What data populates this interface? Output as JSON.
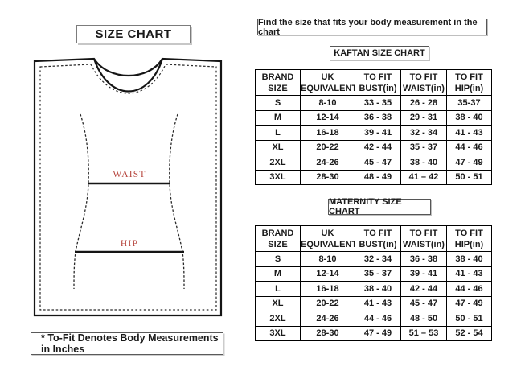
{
  "left_panel": {
    "title": "SIZE CHART",
    "diagram": {
      "waist_label": "WAIST",
      "hip_label": "HIP",
      "label_color": "#b5423a",
      "line_color": "#151515"
    },
    "note": "* To-Fit Denotes Body Measurements in Inches"
  },
  "right_panel": {
    "instruction": "Find the size that fits your body measurement in the chart",
    "tables": [
      {
        "title": "KAFTAN SIZE CHART",
        "headers": [
          "BRAND\nSIZE",
          "UK\nEQUIVALENT",
          "TO FIT\nBUST(in)",
          "TO FIT\nWAIST(in)",
          "TO FIT\nHIP(in)"
        ],
        "rows": [
          [
            "S",
            "8-10",
            "33 - 35",
            "26 - 28",
            "35-37"
          ],
          [
            "M",
            "12-14",
            "36 - 38",
            "29 - 31",
            "38 - 40"
          ],
          [
            "L",
            "16-18",
            "39 - 41",
            "32 - 34",
            "41 - 43"
          ],
          [
            "XL",
            "20-22",
            "42 - 44",
            "35 - 37",
            "44 - 46"
          ],
          [
            "2XL",
            "24-26",
            "45 - 47",
            "38 - 40",
            "47 - 49"
          ],
          [
            "3XL",
            "28-30",
            "48 - 49",
            "41 – 42",
            "50 - 51"
          ]
        ]
      },
      {
        "title": "MATERNITY SIZE CHART",
        "headers": [
          "BRAND\nSIZE",
          "UK\nEQUIVALENT",
          "TO FIT\nBUST(in)",
          "TO FIT\nWAIST(in)",
          "TO FIT\nHIP(in)"
        ],
        "rows": [
          [
            "S",
            "8-10",
            "32 - 34",
            "36 - 38",
            "38 - 40"
          ],
          [
            "M",
            "12-14",
            "35 - 37",
            "39 - 41",
            "41 - 43"
          ],
          [
            "L",
            "16-18",
            "38 - 40",
            "42 - 44",
            "44 - 46"
          ],
          [
            "XL",
            "20-22",
            "41 - 43",
            "45 - 47",
            "47 - 49"
          ],
          [
            "2XL",
            "24-26",
            "44 - 46",
            "48 - 50",
            "50 - 51"
          ],
          [
            "3XL",
            "28-30",
            "47 - 49",
            "51 – 53",
            "52 - 54"
          ]
        ]
      }
    ]
  }
}
